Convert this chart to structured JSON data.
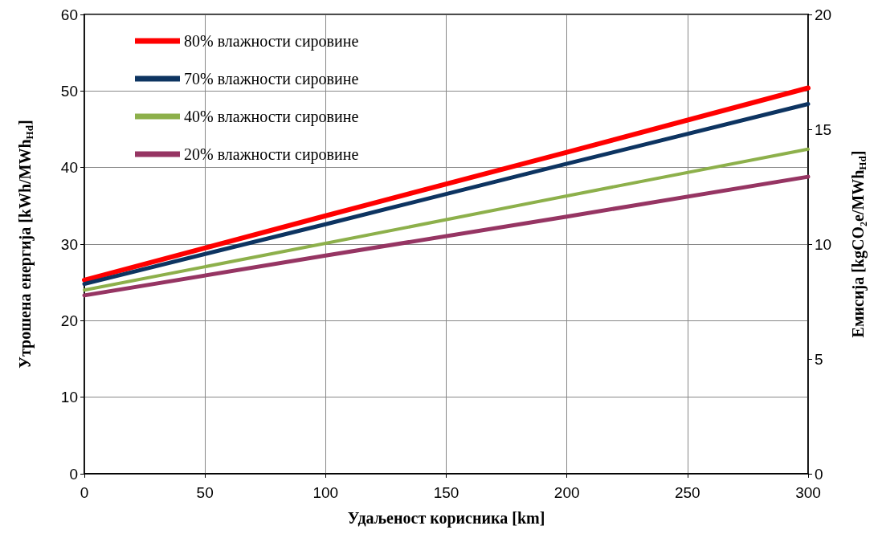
{
  "chart_data": {
    "type": "line",
    "xlabel": "Удаљеност корисника [km]",
    "ylabel": "Утрошена енергија [kWh/MWh$_{Hd}$]",
    "y2label": "Емисија [kgCO₂e/MWh$_{Hd}$]",
    "x": [
      0,
      100,
      200,
      300
    ],
    "series": [
      {
        "name": "80% влажности сировине",
        "color": "#ff0000",
        "values": [
          25.3,
          33.7,
          42.0,
          50.4
        ]
      },
      {
        "name": "70% влажности сировине",
        "color": "#0d3461",
        "values": [
          24.8,
          32.6,
          40.5,
          48.3
        ]
      },
      {
        "name": "40% влажности сировине",
        "color": "#8db04b",
        "values": [
          24.0,
          30.1,
          36.3,
          42.4
        ]
      },
      {
        "name": "20% влажности сировине",
        "color": "#963563",
        "values": [
          23.3,
          28.5,
          33.6,
          38.8
        ]
      }
    ],
    "xlim": [
      0,
      300
    ],
    "xticks": [
      0,
      50,
      100,
      150,
      200,
      250,
      300
    ],
    "ylim": [
      0,
      60
    ],
    "yticks": [
      0,
      10,
      20,
      30,
      40,
      50,
      60
    ],
    "y2lim": [
      0,
      20
    ],
    "y2ticks": [
      0,
      5,
      10,
      15,
      20
    ],
    "grid": true,
    "legend": "top left",
    "marker": "none",
    "line_style": "solid"
  }
}
